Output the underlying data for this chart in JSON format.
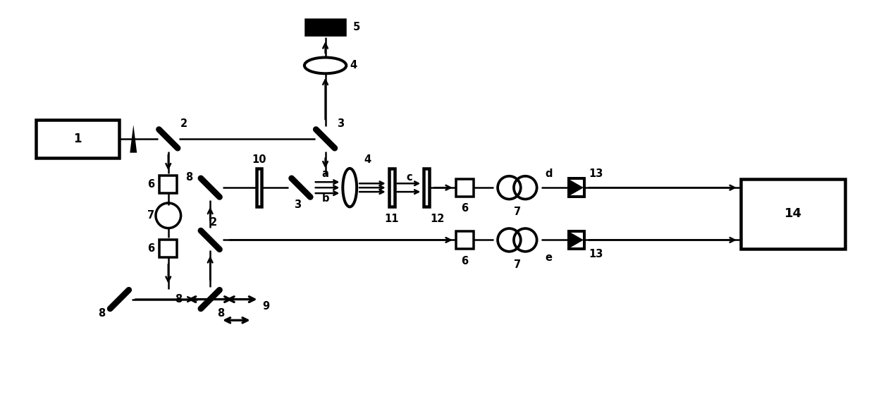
{
  "bg": "#ffffff",
  "lw": 1.8,
  "fw": 12.4,
  "fh": 5.66,
  "xlim": [
    0,
    124
  ],
  "ylim": [
    0,
    56.6
  ]
}
